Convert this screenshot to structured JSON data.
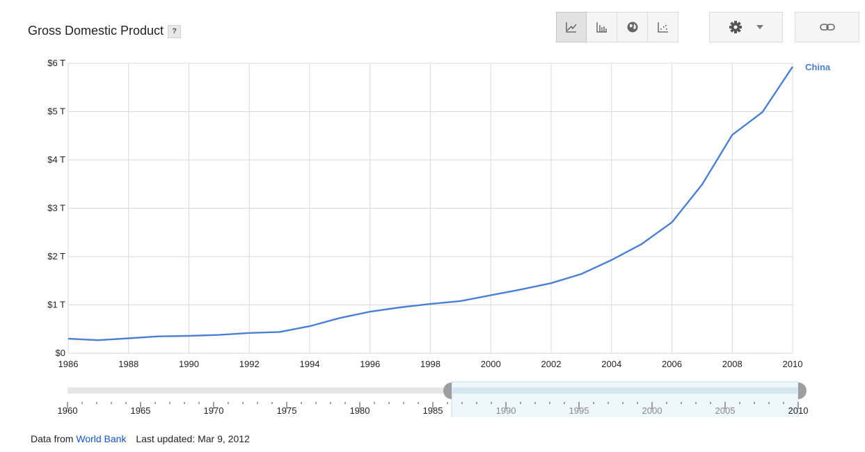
{
  "title": "Gross Domestic Product",
  "help_label": "?",
  "toolbar": {
    "buttons": [
      {
        "icon": "line-chart-icon",
        "active": true
      },
      {
        "icon": "bar-chart-icon",
        "active": false
      },
      {
        "icon": "globe-icon",
        "active": false
      },
      {
        "icon": "scatter-chart-icon",
        "active": false
      }
    ],
    "settings_icon": "gear-icon",
    "link_icon": "link-icon"
  },
  "chart_data": {
    "type": "line",
    "title": "Gross Domestic Product",
    "xlabel": "",
    "ylabel": "",
    "x": [
      1986,
      1987,
      1988,
      1989,
      1990,
      1991,
      1992,
      1993,
      1994,
      1995,
      1996,
      1997,
      1998,
      1999,
      2000,
      2001,
      2002,
      2003,
      2004,
      2005,
      2006,
      2007,
      2008,
      2009,
      2010
    ],
    "series": [
      {
        "name": "China",
        "color": "#4a7fd4",
        "values": [
          0.3,
          0.27,
          0.31,
          0.35,
          0.36,
          0.38,
          0.42,
          0.44,
          0.56,
          0.73,
          0.86,
          0.95,
          1.02,
          1.08,
          1.2,
          1.32,
          1.45,
          1.64,
          1.93,
          2.26,
          2.71,
          3.49,
          4.52,
          4.99,
          5.93
        ]
      }
    ],
    "xlim": [
      1986,
      2010
    ],
    "ylim": [
      0,
      6
    ],
    "y_ticks": [
      0,
      1,
      2,
      3,
      4,
      5,
      6
    ],
    "y_tick_labels": [
      "$0",
      "$1 T",
      "$2 T",
      "$3 T",
      "$4 T",
      "$5 T",
      "$6 T"
    ],
    "x_ticks": [
      1986,
      1988,
      1990,
      1992,
      1994,
      1996,
      1998,
      2000,
      2002,
      2004,
      2006,
      2008,
      2010
    ],
    "x_tick_labels": [
      "1986",
      "1988",
      "1990",
      "1992",
      "1994",
      "1996",
      "1998",
      "2000",
      "2002",
      "2004",
      "2006",
      "2008",
      "2010"
    ],
    "grid": true,
    "legend": "right"
  },
  "range_slider": {
    "full_range": [
      1960,
      2010
    ],
    "selected_range": [
      1986,
      2010
    ],
    "labels": [
      "1960",
      "1965",
      "1970",
      "1975",
      "1980",
      "1985",
      "1990",
      "1995",
      "2000",
      "2005",
      "2010"
    ]
  },
  "footer": {
    "prefix": "Data from",
    "source": "World Bank",
    "updated": "Last updated: Mar 9, 2012"
  }
}
